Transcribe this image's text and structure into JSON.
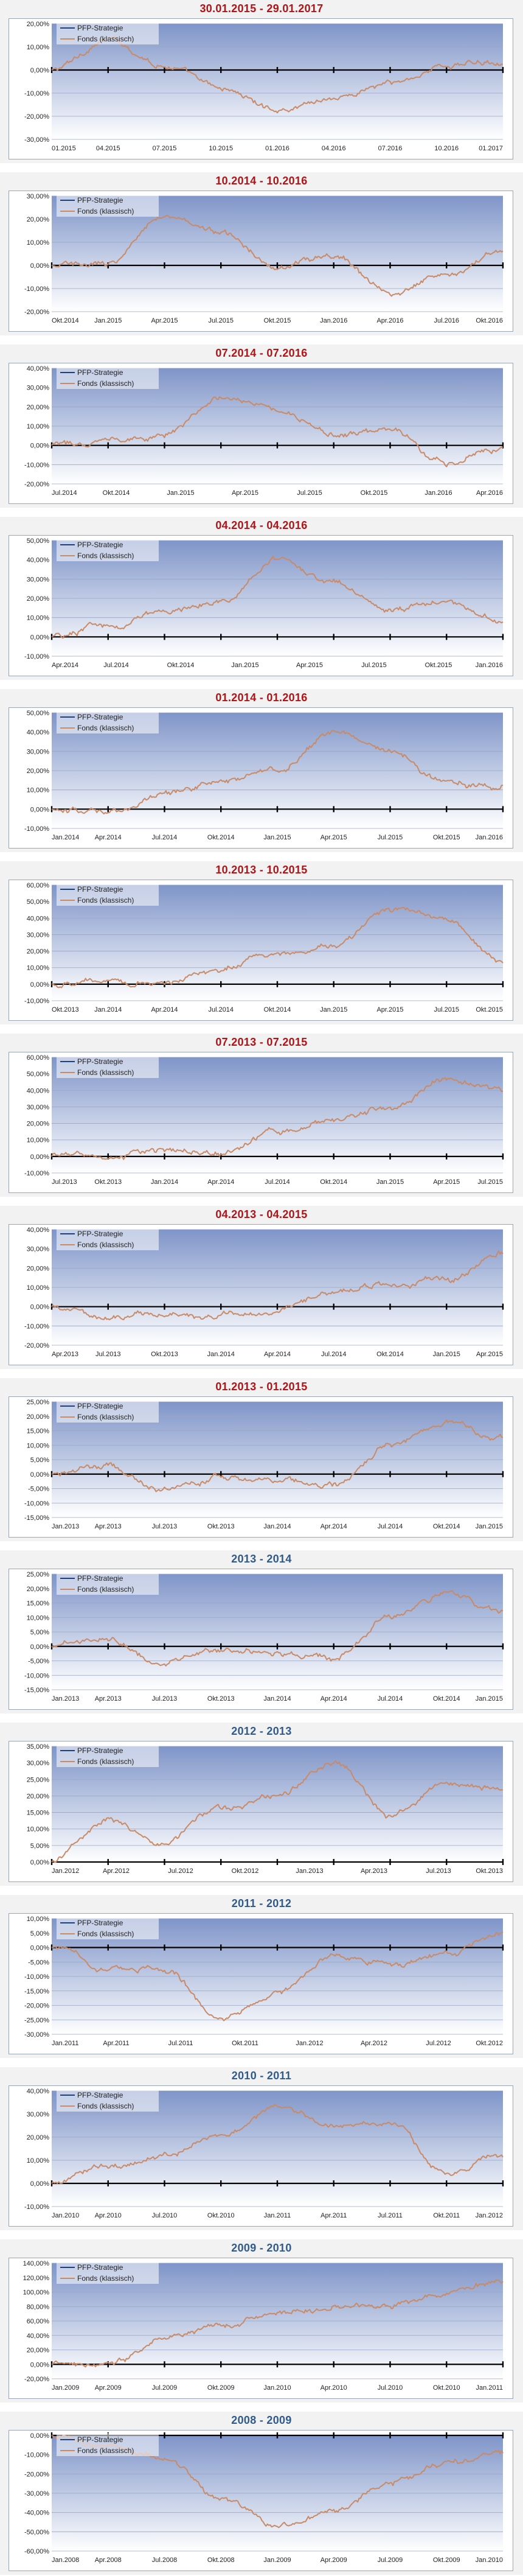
{
  "colors": {
    "background": "#ffffff",
    "panel": "#f2f2f2",
    "title_red": "#b11216",
    "title_blue": "#2f5a8b",
    "plot_top": "#7f95c9",
    "plot_bottom": "#ffffff",
    "grid": "#9aa5c4",
    "zero_line": "#000000",
    "strategy_line": "#1f3f7f",
    "fund_line": "#c98a67",
    "legend_fill": "#ffffff"
  },
  "legend": {
    "strategy": "PFP-Strategie",
    "fund": "Fonds (klassisch)"
  },
  "chart_data": [
    {
      "type": "line",
      "title": "30.01.2015 - 29.01.2017",
      "title_color": "red",
      "ylim": [
        -30,
        20
      ],
      "yticks": [
        20,
        10,
        0,
        -10,
        -20,
        -30
      ],
      "xticks": [
        "01.2015",
        "04.2015",
        "07.2015",
        "10.2015",
        "01.2016",
        "04.2016",
        "07.2016",
        "10.2016",
        "01.2017"
      ],
      "series": [
        {
          "name": "PFP-Strategie",
          "values": [
            0,
            0,
            0,
            0,
            0,
            0,
            0,
            0,
            0
          ]
        },
        {
          "name": "Fonds (klassisch)",
          "values": [
            0,
            13,
            2,
            -8,
            -17,
            -12,
            -6,
            2,
            4
          ]
        }
      ]
    },
    {
      "type": "line",
      "title": "10.2014 - 10.2016",
      "title_color": "red",
      "ylim": [
        -20,
        30
      ],
      "yticks": [
        30,
        20,
        10,
        0,
        -10,
        -20
      ],
      "xticks": [
        "Okt.2014",
        "Jan.2015",
        "Apr.2015",
        "Jul.2015",
        "Okt.2015",
        "Jan.2016",
        "Apr.2016",
        "Jul.2016",
        "Okt.2016"
      ],
      "series": [
        {
          "name": "PFP-Strategie",
          "values": [
            0,
            0,
            0,
            0,
            0,
            0,
            0,
            0,
            0
          ]
        },
        {
          "name": "Fonds (klassisch)",
          "values": [
            0,
            1,
            22,
            14,
            0,
            4,
            -12,
            -4,
            6
          ]
        }
      ]
    },
    {
      "type": "line",
      "title": "07.2014 - 07.2016",
      "title_color": "red",
      "ylim": [
        -20,
        40
      ],
      "yticks": [
        40,
        30,
        20,
        10,
        0,
        -10,
        -20
      ],
      "xticks": [
        "Jul.2014",
        "Okt.2014",
        "Jan.2015",
        "Apr.2015",
        "Jul.2015",
        "Okt.2015",
        "Jan.2016",
        "Apr.2016"
      ],
      "series": [
        {
          "name": "PFP-Strategie",
          "values": [
            0,
            0,
            0,
            0,
            0,
            0,
            0,
            0,
            0
          ]
        },
        {
          "name": "Fonds (klassisch)",
          "values": [
            0,
            3,
            6,
            26,
            19,
            5,
            8,
            -9,
            -2
          ]
        }
      ]
    },
    {
      "type": "line",
      "title": "04.2014 - 04.2016",
      "title_color": "red",
      "ylim": [
        -10,
        50
      ],
      "yticks": [
        50,
        40,
        30,
        20,
        10,
        0,
        -10
      ],
      "xticks": [
        "Apr.2014",
        "Jul.2014",
        "Okt.2014",
        "Jan.2015",
        "Apr.2015",
        "Jul.2015",
        "Okt.2015",
        "Jan.2016"
      ],
      "series": [
        {
          "name": "PFP-Strategie",
          "values": [
            0,
            0,
            0,
            0,
            0,
            0,
            0,
            0,
            0
          ]
        },
        {
          "name": "Fonds (klassisch)",
          "values": [
            0,
            6,
            13,
            18,
            40,
            28,
            14,
            18,
            8
          ]
        }
      ]
    },
    {
      "type": "line",
      "title": "01.2014 - 01.2016",
      "title_color": "red",
      "ylim": [
        -10,
        50
      ],
      "yticks": [
        50,
        40,
        30,
        20,
        10,
        0,
        -10
      ],
      "xticks": [
        "Jan.2014",
        "Apr.2014",
        "Jul.2014",
        "Okt.2014",
        "Jan.2015",
        "Apr.2015",
        "Jul.2015",
        "Okt.2015",
        "Jan.2016"
      ],
      "series": [
        {
          "name": "PFP-Strategie",
          "values": [
            0,
            0,
            0,
            0,
            0,
            0,
            0,
            0,
            0
          ]
        },
        {
          "name": "Fonds (klassisch)",
          "values": [
            0,
            -2,
            8,
            14,
            20,
            40,
            30,
            14,
            12
          ]
        }
      ]
    },
    {
      "type": "line",
      "title": "10.2013 - 10.2015",
      "title_color": "red",
      "ylim": [
        -10,
        60
      ],
      "yticks": [
        60,
        50,
        40,
        30,
        20,
        10,
        0,
        -10
      ],
      "xticks": [
        "Okt.2013",
        "Jan.2014",
        "Apr.2014",
        "Jul.2014",
        "Okt.2014",
        "Jan.2015",
        "Apr.2015",
        "Jul.2015",
        "Okt.2015"
      ],
      "series": [
        {
          "name": "PFP-Strategie",
          "values": [
            0,
            0,
            0,
            0,
            0,
            0,
            0,
            0,
            0
          ]
        },
        {
          "name": "Fonds (klassisch)",
          "values": [
            0,
            2,
            1,
            10,
            18,
            24,
            45,
            38,
            14
          ]
        }
      ]
    },
    {
      "type": "line",
      "title": "07.2013 - 07.2015",
      "title_color": "red",
      "ylim": [
        -10,
        60
      ],
      "yticks": [
        60,
        50,
        40,
        30,
        20,
        10,
        0,
        -10
      ],
      "xticks": [
        "Jul.2013",
        "Okt.2013",
        "Jan.2014",
        "Apr.2014",
        "Jul.2014",
        "Okt.2014",
        "Jan.2015",
        "Apr.2015",
        "Jul.2015"
      ],
      "series": [
        {
          "name": "PFP-Strategie",
          "values": [
            0,
            0,
            0,
            0,
            0,
            0,
            0,
            0,
            0
          ]
        },
        {
          "name": "Fonds (klassisch)",
          "values": [
            0,
            1,
            3,
            2,
            15,
            22,
            28,
            48,
            40
          ]
        }
      ]
    },
    {
      "type": "line",
      "title": "04.2013 - 04.2015",
      "title_color": "red",
      "ylim": [
        -20,
        40
      ],
      "yticks": [
        40,
        30,
        20,
        10,
        0,
        -10,
        -20
      ],
      "xticks": [
        "Apr.2013",
        "Jul.2013",
        "Okt.2013",
        "Jan.2014",
        "Apr.2014",
        "Jul.2014",
        "Okt.2014",
        "Jan.2015",
        "Apr.2015"
      ],
      "series": [
        {
          "name": "PFP-Strategie",
          "values": [
            0,
            0,
            0,
            0,
            0,
            0,
            0,
            0,
            0
          ]
        },
        {
          "name": "Fonds (klassisch)",
          "values": [
            0,
            -6,
            -4,
            -5,
            -2,
            8,
            12,
            14,
            28
          ]
        }
      ]
    },
    {
      "type": "line",
      "title": "01.2013 - 01.2015",
      "title_color": "red",
      "ylim": [
        -15,
        25
      ],
      "yticks": [
        25,
        20,
        15,
        10,
        5,
        0,
        -5,
        -10,
        -15
      ],
      "xticks": [
        "Jan.2013",
        "Apr.2013",
        "Jul.2013",
        "Okt.2013",
        "Jan.2014",
        "Apr.2014",
        "Jul.2014",
        "Okt.2014",
        "Jan.2015"
      ],
      "series": [
        {
          "name": "PFP-Strategie",
          "values": [
            0,
            0,
            0,
            0,
            0,
            0,
            0,
            0,
            0
          ]
        },
        {
          "name": "Fonds (klassisch)",
          "values": [
            0,
            3,
            -6,
            -1,
            -2,
            -4,
            10,
            18,
            12
          ]
        }
      ]
    },
    {
      "type": "line",
      "title": "2013 - 2014",
      "title_color": "blue",
      "ylim": [
        -15,
        25
      ],
      "yticks": [
        25,
        20,
        15,
        10,
        5,
        0,
        -5,
        -10,
        -15
      ],
      "xticks": [
        "Jan.2013",
        "Apr.2013",
        "Jul.2013",
        "Okt.2013",
        "Jan.2014",
        "Apr.2014",
        "Jul.2014",
        "Okt.2014",
        "Jan.2015"
      ],
      "series": [
        {
          "name": "PFP-Strategie",
          "values": [
            0,
            0,
            0,
            0,
            0,
            0,
            0,
            0,
            0
          ]
        },
        {
          "name": "Fonds (klassisch)",
          "values": [
            0,
            3,
            -6,
            -1,
            -2,
            -4,
            10,
            18,
            12
          ]
        }
      ]
    },
    {
      "type": "line",
      "title": "2012 - 2013",
      "title_color": "blue",
      "ylim": [
        0,
        35
      ],
      "yticks": [
        35,
        30,
        25,
        20,
        15,
        10,
        5,
        0
      ],
      "xticks": [
        "Jan.2012",
        "Apr.2012",
        "Jul.2012",
        "Okt.2012",
        "Jan.2013",
        "Apr.2013",
        "Jul.2013",
        "Okt.2013"
      ],
      "series": [
        {
          "name": "PFP-Strategie",
          "values": [
            0,
            0,
            0,
            0,
            0,
            0,
            0,
            0,
            0
          ]
        },
        {
          "name": "Fonds (klassisch)",
          "values": [
            0,
            13,
            5,
            16,
            20,
            30,
            14,
            24,
            22
          ]
        }
      ]
    },
    {
      "type": "line",
      "title": "2011 - 2012",
      "title_color": "blue",
      "ylim": [
        -30,
        10
      ],
      "yticks": [
        10,
        5,
        0,
        -5,
        -10,
        -15,
        -20,
        -25,
        -30
      ],
      "xticks": [
        "Jan.2011",
        "Apr.2011",
        "Jul.2011",
        "Okt.2011",
        "Jan.2012",
        "Apr.2012",
        "Jul.2012",
        "Okt.2012"
      ],
      "series": [
        {
          "name": "PFP-Strategie",
          "values": [
            0,
            0,
            0,
            0,
            0,
            0,
            0,
            0,
            0
          ]
        },
        {
          "name": "Fonds (klassisch)",
          "values": [
            0,
            -7,
            -8,
            -24,
            -16,
            -3,
            -6,
            -2,
            5
          ]
        }
      ]
    },
    {
      "type": "line",
      "title": "2010 - 2011",
      "title_color": "blue",
      "ylim": [
        -10,
        40
      ],
      "yticks": [
        40,
        30,
        20,
        10,
        0,
        -10
      ],
      "xticks": [
        "Jan.2010",
        "Apr.2010",
        "Jul.2010",
        "Okt.2010",
        "Jan.2011",
        "Apr.2011",
        "Jul.2011",
        "Okt.2011",
        "Jan.2012"
      ],
      "series": [
        {
          "name": "PFP-Strategie",
          "values": [
            0,
            0,
            0,
            0,
            0,
            0,
            0,
            0,
            0
          ]
        },
        {
          "name": "Fonds (klassisch)",
          "values": [
            0,
            8,
            12,
            20,
            33,
            25,
            27,
            3,
            13
          ]
        }
      ]
    },
    {
      "type": "line",
      "title": "2009 - 2010",
      "title_color": "blue",
      "ylim": [
        -20,
        140
      ],
      "yticks": [
        140,
        120,
        100,
        80,
        60,
        40,
        20,
        0,
        -20
      ],
      "xticks": [
        "Jan.2009",
        "Apr.2009",
        "Jul.2009",
        "Okt.2009",
        "Jan.2010",
        "Apr.2010",
        "Jul.2010",
        "Okt.2010",
        "Jan.2011"
      ],
      "series": [
        {
          "name": "PFP-Strategie",
          "values": [
            0,
            0,
            0,
            0,
            0,
            0,
            0,
            0,
            0
          ]
        },
        {
          "name": "Fonds (klassisch)",
          "values": [
            0,
            -5,
            38,
            55,
            70,
            80,
            85,
            98,
            115
          ]
        }
      ]
    },
    {
      "type": "line",
      "title": "2008 - 2009",
      "title_color": "blue",
      "ylim": [
        -60,
        0
      ],
      "yticks": [
        0,
        -10,
        -20,
        -30,
        -40,
        -50,
        -60
      ],
      "xticks": [
        "Jan.2008",
        "Apr.2008",
        "Jul.2008",
        "Okt.2008",
        "Jan.2009",
        "Apr.2009",
        "Jul.2009",
        "Okt.2009",
        "Jan.2010"
      ],
      "series": [
        {
          "name": "PFP-Strategie",
          "values": [
            0,
            0,
            0,
            0,
            0,
            0,
            0,
            0,
            0
          ]
        },
        {
          "name": "Fonds (klassisch)",
          "values": [
            0,
            -6,
            -12,
            -32,
            -48,
            -40,
            -25,
            -15,
            -8
          ]
        }
      ]
    }
  ]
}
